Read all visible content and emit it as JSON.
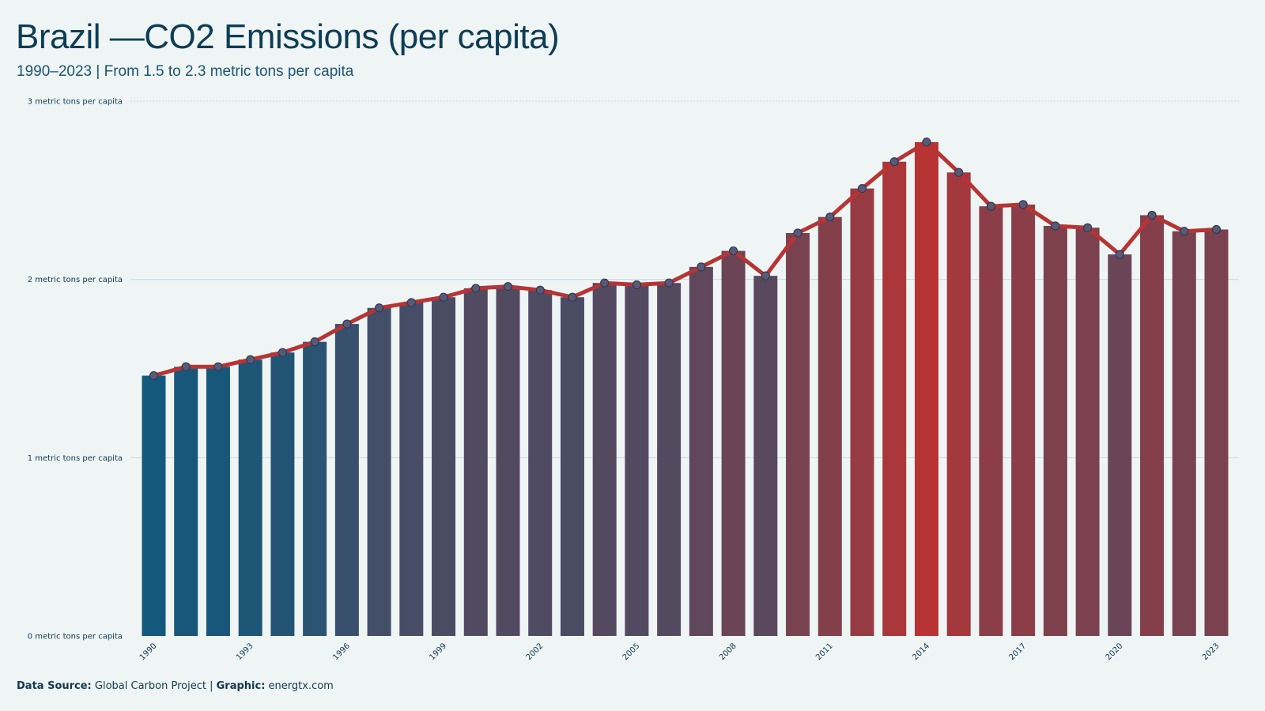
{
  "header": {
    "title": "Brazil —CO2 Emissions (per capita)",
    "subtitle": "1990–2023 | From 1.5 to 2.3 metric tons per capita"
  },
  "footer": {
    "source_label": "Data Source:",
    "source_value": "Global Carbon Project",
    "separator": "|",
    "graphic_label": "Graphic:",
    "graphic_value": "energtx.com"
  },
  "colors": {
    "background": "#eff5f5",
    "bar_low": "#13587d",
    "bar_high": "#b83434",
    "line": "#b83434",
    "marker_fill": "#5a5a78",
    "marker_stroke": "#2e3a50",
    "gridline": "#c9d7da"
  },
  "chart_data": {
    "type": "bar",
    "title": "Brazil —CO2 Emissions (per capita)",
    "subtitle": "1990–2023 | From 1.5 to 2.3 metric tons per capita",
    "xlabel": "",
    "ylabel": "",
    "ylim": [
      0,
      3
    ],
    "yticks": [
      {
        "value": 0,
        "label": "0 metric tons per capita"
      },
      {
        "value": 1,
        "label": "1 metric tons per capita"
      },
      {
        "value": 2,
        "label": "2 metric tons per capita"
      },
      {
        "value": 3,
        "label": "3 metric tons per capita"
      }
    ],
    "xtick_labels": [
      "1990",
      "1993",
      "1996",
      "1999",
      "2002",
      "2005",
      "2008",
      "2011",
      "2014",
      "2017",
      "2020",
      "2023"
    ],
    "grid": true,
    "legend": "none",
    "overlay": "line with markers on same values",
    "categories": [
      "1990",
      "1991",
      "1992",
      "1993",
      "1994",
      "1995",
      "1996",
      "1997",
      "1998",
      "1999",
      "2000",
      "2001",
      "2002",
      "2003",
      "2004",
      "2005",
      "2006",
      "2007",
      "2008",
      "2009",
      "2010",
      "2011",
      "2012",
      "2013",
      "2014",
      "2015",
      "2016",
      "2017",
      "2018",
      "2019",
      "2020",
      "2021",
      "2022",
      "2023"
    ],
    "values": [
      1.46,
      1.51,
      1.51,
      1.55,
      1.59,
      1.65,
      1.75,
      1.84,
      1.87,
      1.9,
      1.95,
      1.96,
      1.94,
      1.9,
      1.98,
      1.97,
      1.98,
      2.07,
      2.16,
      2.02,
      2.26,
      2.35,
      2.51,
      2.66,
      2.77,
      2.6,
      2.41,
      2.42,
      2.3,
      2.29,
      2.14,
      2.36,
      2.27,
      2.28
    ]
  }
}
